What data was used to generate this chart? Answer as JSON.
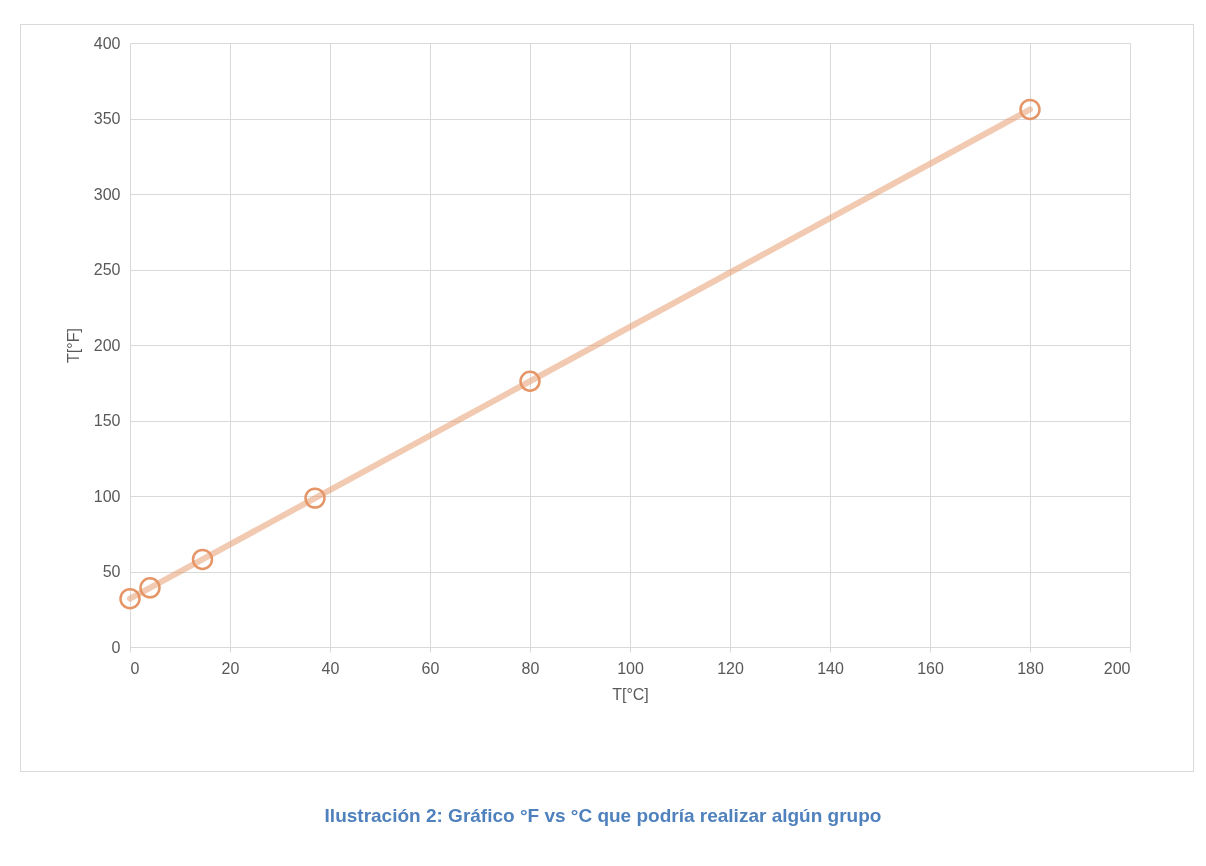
{
  "chart_data": {
    "type": "line",
    "xlabel": "T[°C]",
    "ylabel": "T[°F]",
    "x": [
      0,
      4,
      14.5,
      37,
      80,
      180
    ],
    "series": [
      {
        "color": "#e59566",
        "values": [
          32,
          39.2,
          58,
          98.6,
          176,
          356
        ]
      }
    ],
    "xlim": [
      0,
      200
    ],
    "xticks": [
      0,
      20,
      40,
      60,
      80,
      100,
      120,
      140,
      160,
      180,
      200
    ],
    "ylim": [
      0,
      400
    ],
    "yticks": [
      0,
      50,
      100,
      150,
      200,
      250,
      300,
      350,
      400
    ],
    "grid": true,
    "marker": "circle",
    "line_style": "solid",
    "annotations": [
      "Ilustración 2: Gráfico °F vs °C que podría realizar algún grupo"
    ]
  }
}
